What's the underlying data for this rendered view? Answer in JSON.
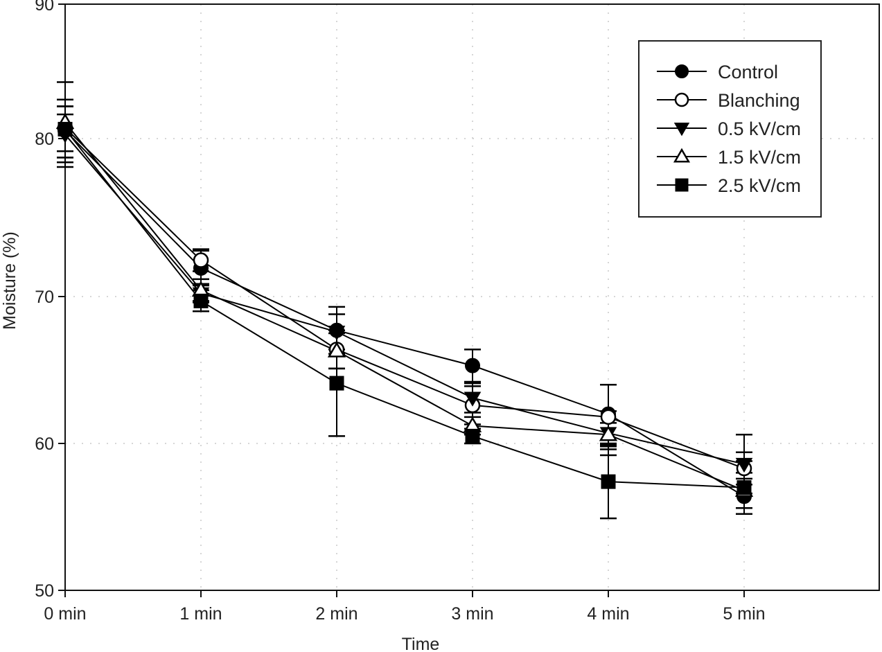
{
  "chart_data": {
    "type": "line",
    "title": "",
    "xlabel": "Time",
    "ylabel": "Moisture (%)",
    "categories": [
      "0 min",
      "1 min",
      "2 min",
      "3 min",
      "4 min",
      "5 min"
    ],
    "yticks": [
      50,
      60,
      70,
      80,
      90
    ],
    "ylim": [
      50,
      90
    ],
    "grid": "dotted",
    "legend_position": "top-right",
    "series": [
      {
        "name": "Control",
        "marker": "circle-filled",
        "values": [
          80.6,
          71.8,
          67.7,
          65.3,
          62.0,
          56.4
        ],
        "errors": [
          1.8,
          1.1,
          1.6,
          1.1,
          2.0,
          1.2
        ]
      },
      {
        "name": "Blanching",
        "marker": "circle-open",
        "values": [
          80.8,
          72.3,
          66.4,
          62.6,
          61.8,
          58.3
        ],
        "errors": [
          1.6,
          0.7,
          1.3,
          1.3,
          2.2,
          1.1
        ]
      },
      {
        "name": "0.5 kV/cm",
        "marker": "triangle-down-filled",
        "values": [
          80.3,
          70.2,
          67.6,
          63.1,
          60.7,
          58.6
        ],
        "errors": [
          1.5,
          0.6,
          1.2,
          1.0,
          1.5,
          2.0
        ]
      },
      {
        "name": "1.5 kV/cm",
        "marker": "triangle-up-open",
        "values": [
          81.2,
          70.4,
          66.3,
          61.2,
          60.6,
          56.8
        ],
        "errors": [
          3.0,
          0.7,
          1.2,
          0.6,
          0.8,
          1.2
        ]
      },
      {
        "name": "2.5 kV/cm",
        "marker": "square-filled",
        "values": [
          80.7,
          69.7,
          64.1,
          60.5,
          57.4,
          57.0
        ],
        "errors": [
          2.2,
          0.7,
          3.6,
          0.5,
          2.5,
          1.8
        ]
      }
    ]
  }
}
